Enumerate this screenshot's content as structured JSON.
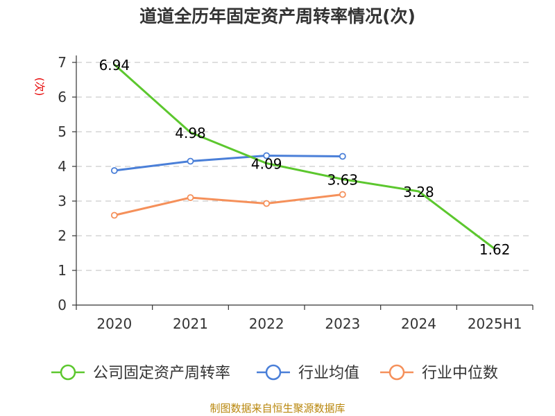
{
  "title": "道道全历年固定资产周转率情况(次)",
  "unit_label": "(次)",
  "source": "制图数据来自恒生聚源数据库",
  "colors": {
    "company": "#5cc72e",
    "industry_avg": "#4a7fd8",
    "industry_median": "#f5905a",
    "unit": "#e60000",
    "source": "#b8860b",
    "grid": "#cccccc",
    "axis": "#333333"
  },
  "chart_data": {
    "type": "line",
    "title": "道道全历年固定资产周转率情况(次)",
    "ylabel": "(次)",
    "ylim": [
      0,
      7
    ],
    "yticks": [
      "0",
      "1",
      "2",
      "3",
      "4",
      "5",
      "6",
      "7"
    ],
    "categories": [
      "2020",
      "2021",
      "2022",
      "2023",
      "2024",
      "2025H1"
    ],
    "grid": true,
    "legend_position": "bottom",
    "series": [
      {
        "name": "公司固定资产周转率",
        "values": [
          6.94,
          4.98,
          4.09,
          3.63,
          3.28,
          1.62
        ],
        "labels": [
          "6.94",
          "4.98",
          "4.09",
          "3.63",
          "3.28",
          "1.62"
        ],
        "color": "#5cc72e",
        "show_labels": true
      },
      {
        "name": "行业均值",
        "values": [
          3.88,
          4.15,
          4.31,
          4.29,
          null,
          null
        ],
        "color": "#4a7fd8",
        "show_labels": false
      },
      {
        "name": "行业中位数",
        "values": [
          2.59,
          3.1,
          2.93,
          3.19,
          null,
          null
        ],
        "color": "#f5905a",
        "show_labels": false
      }
    ]
  }
}
